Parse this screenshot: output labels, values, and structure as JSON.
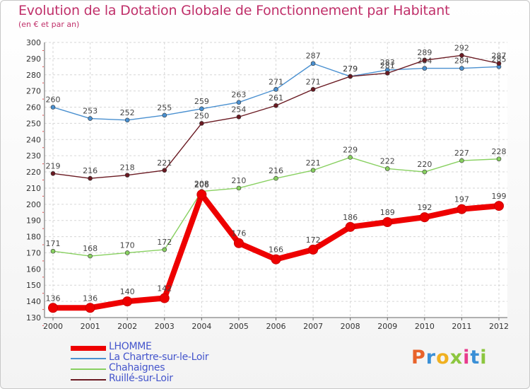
{
  "title": "Evolution de la Dotation Globale de Fonctionnement par Habitant",
  "subtitle": "(en € et par an)",
  "logo": {
    "text": "Proxiti",
    "colors": [
      "#e8622a",
      "#3a8fd6",
      "#f0b020",
      "#8cc63f",
      "#e83a8c",
      "#3a8fd6",
      "#8cc63f"
    ]
  },
  "chart_data": {
    "type": "line",
    "x": [
      "2000",
      "2001",
      "2002",
      "2003",
      "2004",
      "2005",
      "2006",
      "2007",
      "2008",
      "2009",
      "2010",
      "2011",
      "2012"
    ],
    "ylim": [
      130,
      300
    ],
    "yticks": [
      "130",
      "140",
      "150",
      "160",
      "170",
      "180",
      "190",
      "200",
      "210",
      "220",
      "230",
      "240",
      "250",
      "260",
      "270",
      "280",
      "290",
      "300"
    ],
    "grid": true,
    "series": [
      {
        "name": "LHOMME",
        "color": "#ee0000",
        "thick": true,
        "values": [
          136,
          136,
          140,
          142,
          206,
          176,
          166,
          172,
          186,
          189,
          192,
          197,
          199
        ]
      },
      {
        "name": "La Chartre-sur-le-Loir",
        "color": "#4a90d0",
        "thick": false,
        "values": [
          260,
          253,
          252,
          255,
          259,
          263,
          271,
          287,
          279,
          283,
          284,
          284,
          285
        ]
      },
      {
        "name": "Chahaignes",
        "color": "#88d060",
        "thick": false,
        "values": [
          171,
          168,
          170,
          172,
          208,
          210,
          216,
          221,
          229,
          222,
          220,
          227,
          228
        ]
      },
      {
        "name": "Ruillé-sur-Loir",
        "color": "#6a1a22",
        "thick": false,
        "values": [
          219,
          216,
          218,
          221,
          250,
          254,
          261,
          271,
          279,
          281,
          289,
          292,
          287
        ]
      }
    ]
  }
}
